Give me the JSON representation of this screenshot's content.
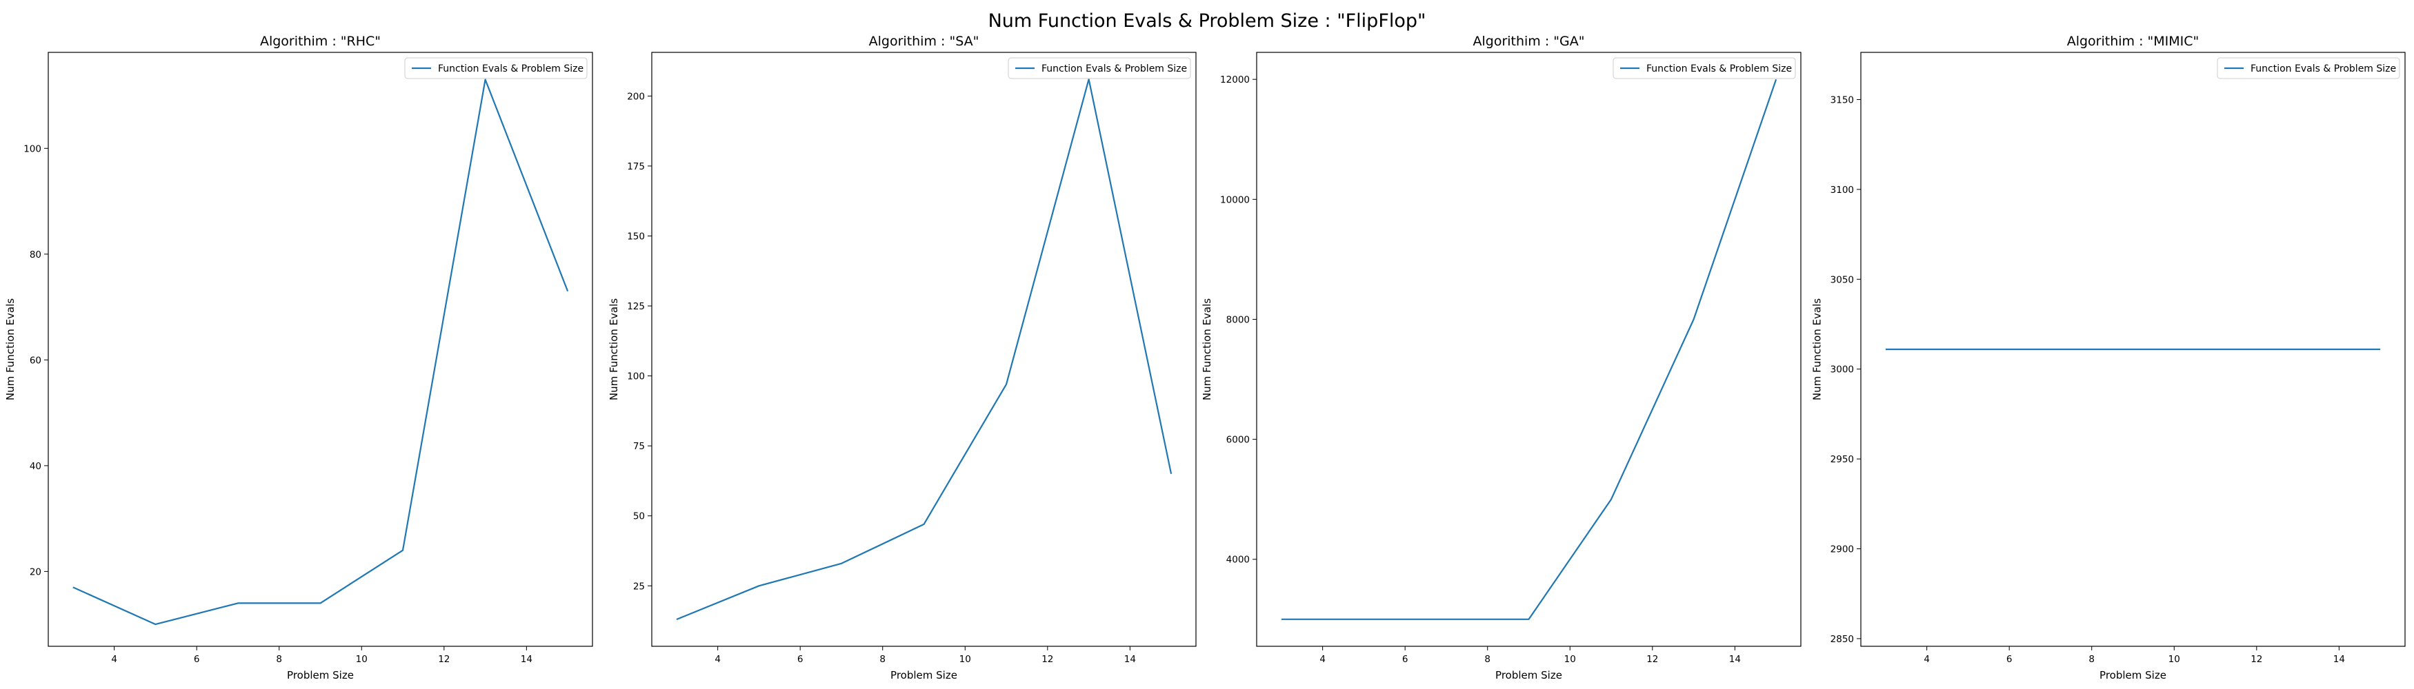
{
  "figure_title": "Num Function Evals & Problem Size : \"FlipFlop\"",
  "colors": {
    "line": "#1f77b4",
    "axes": "#000000",
    "legend_border": "#cccccc"
  },
  "chart_data": [
    {
      "type": "line",
      "title": "Algorithim : \"RHC\"",
      "xlabel": "Problem Size",
      "ylabel": "Num Function Evals",
      "legend_placement": "top-right",
      "grid": false,
      "xlim": [
        2.4,
        15.6
      ],
      "ylim": [
        5.85,
        118.15
      ],
      "xticks": [
        4,
        6,
        8,
        10,
        12,
        14
      ],
      "yticks": [
        20,
        40,
        60,
        80,
        100
      ],
      "ytick_labels": [
        "20",
        "40",
        "60",
        "80",
        "100"
      ],
      "series": [
        {
          "name": "Function Evals & Problem Size",
          "x": [
            3,
            5,
            7,
            9,
            11,
            13,
            15
          ],
          "y": [
            17,
            10,
            14,
            14,
            24,
            113,
            73
          ]
        }
      ]
    },
    {
      "type": "line",
      "title": "Algorithim : \"SA\"",
      "xlabel": "Problem Size",
      "ylabel": "Num Function Evals",
      "legend_placement": "top-right",
      "grid": false,
      "xlim": [
        2.4,
        15.6
      ],
      "ylim": [
        3.4,
        215.6
      ],
      "xticks": [
        4,
        6,
        8,
        10,
        12,
        14
      ],
      "yticks": [
        25,
        50,
        75,
        100,
        125,
        150,
        175,
        200
      ],
      "ytick_labels": [
        "25",
        "50",
        "75",
        "100",
        "125",
        "150",
        "175",
        "200"
      ],
      "series": [
        {
          "name": "Function Evals & Problem Size",
          "x": [
            3,
            5,
            7,
            9,
            11,
            13,
            15
          ],
          "y": [
            13,
            25,
            33,
            47,
            97,
            206,
            65
          ]
        }
      ]
    },
    {
      "type": "line",
      "title": "Algorithim : \"GA\"",
      "xlabel": "Problem Size",
      "ylabel": "Num Function Evals",
      "legend_placement": "top-right",
      "grid": false,
      "xlim": [
        2.4,
        15.6
      ],
      "ylim": [
        2550,
        12450
      ],
      "xticks": [
        4,
        6,
        8,
        10,
        12,
        14
      ],
      "yticks": [
        4000,
        6000,
        8000,
        10000,
        12000
      ],
      "ytick_labels": [
        "4000",
        "6000",
        "8000",
        "10000",
        "12000"
      ],
      "series": [
        {
          "name": "Function Evals & Problem Size",
          "x": [
            3,
            5,
            7,
            9,
            11,
            13,
            15
          ],
          "y": [
            3000,
            3000,
            3000,
            3000,
            5000,
            8000,
            12000
          ]
        }
      ]
    },
    {
      "type": "line",
      "title": "Algorithim : \"MIMIC\"",
      "xlabel": "Problem Size",
      "ylabel": "Num Function Evals",
      "legend_placement": "top-right",
      "grid": false,
      "xlim": [
        2.4,
        15.6
      ],
      "ylim": [
        2845.75,
        3176.25
      ],
      "xticks": [
        4,
        6,
        8,
        10,
        12,
        14
      ],
      "yticks": [
        2850,
        2900,
        2950,
        3000,
        3050,
        3100,
        3150
      ],
      "ytick_labels": [
        "2850",
        "2900",
        "2950",
        "3000",
        "3050",
        "3100",
        "3150"
      ],
      "series": [
        {
          "name": "Function Evals & Problem Size",
          "x": [
            3,
            5,
            7,
            9,
            11,
            13,
            15
          ],
          "y": [
            3011,
            3011,
            3011,
            3011,
            3011,
            3011,
            3011
          ]
        }
      ]
    }
  ]
}
